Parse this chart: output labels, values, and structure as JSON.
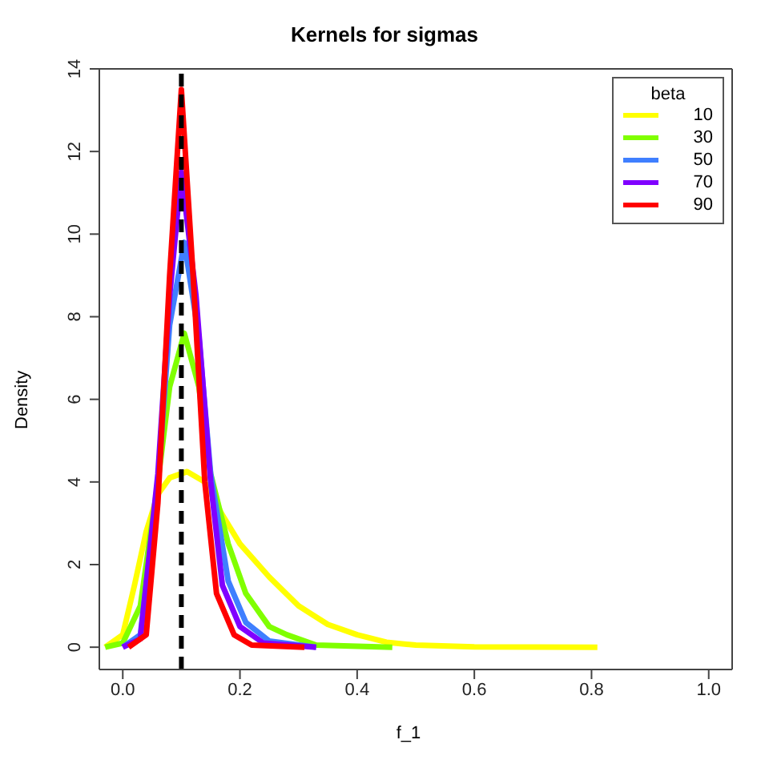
{
  "chart_data": {
    "type": "line",
    "title": "Kernels for sigmas",
    "xlabel": "f_1",
    "ylabel": "Density",
    "legend_title": "beta",
    "xlim": [
      -0.04,
      1.04
    ],
    "xticks": [
      {
        "value": 0,
        "label": "0.0"
      },
      0.2,
      0.4,
      0.6,
      0.8,
      {
        "value": 1,
        "label": "1.0"
      }
    ],
    "ylim": [
      -0.54,
      14
    ],
    "yticks": [
      0,
      2,
      4,
      6,
      8,
      10,
      12,
      14
    ],
    "legend": "top right",
    "marker": "none",
    "line_style": "solid",
    "ref_lines": [
      {
        "axis": "x",
        "value": 0.1,
        "color": "#000000",
        "line_style": "dashed"
      }
    ],
    "series": [
      {
        "name": "10",
        "color": "#ffff00",
        "x": [
          -0.03,
          0,
          0.02,
          0.04,
          0.06,
          0.08,
          0.11,
          0.14,
          0.17,
          0.2,
          0.25,
          0.3,
          0.35,
          0.4,
          0.45,
          0.5,
          0.6,
          0.81
        ],
        "values": [
          0,
          0.3,
          1.5,
          2.8,
          3.7,
          4.1,
          4.25,
          4.0,
          3.2,
          2.5,
          1.7,
          1.0,
          0.55,
          0.3,
          0.12,
          0.05,
          0.01,
          0
        ]
      },
      {
        "name": "30",
        "color": "#80ff00",
        "x": [
          -0.03,
          0,
          0.03,
          0.06,
          0.08,
          0.105,
          0.13,
          0.15,
          0.18,
          0.21,
          0.25,
          0.28,
          0.33,
          0.46
        ],
        "values": [
          0,
          0.1,
          1.0,
          4.0,
          6.3,
          7.6,
          6.3,
          4.2,
          2.5,
          1.3,
          0.5,
          0.3,
          0.05,
          0
        ]
      },
      {
        "name": "50",
        "color": "#3f7fff",
        "x": [
          0,
          0.03,
          0.06,
          0.08,
          0.105,
          0.13,
          0.15,
          0.18,
          0.21,
          0.25,
          0.33
        ],
        "values": [
          0,
          0.3,
          4.0,
          7.8,
          9.8,
          7.5,
          4.2,
          1.6,
          0.6,
          0.15,
          0
        ]
      },
      {
        "name": "70",
        "color": "#8000ff",
        "x": [
          0,
          0.03,
          0.06,
          0.08,
          0.1,
          0.125,
          0.15,
          0.17,
          0.2,
          0.24,
          0.33
        ],
        "values": [
          0,
          0.2,
          4.2,
          8.5,
          11.5,
          8.5,
          4.0,
          1.5,
          0.5,
          0.1,
          0
        ]
      },
      {
        "name": "90",
        "color": "#ff0000",
        "x": [
          0.01,
          0.04,
          0.06,
          0.08,
          0.1,
          0.12,
          0.14,
          0.16,
          0.19,
          0.22,
          0.31
        ],
        "values": [
          0,
          0.3,
          3.5,
          9,
          13.5,
          9,
          4.0,
          1.3,
          0.3,
          0.05,
          0
        ]
      }
    ]
  }
}
